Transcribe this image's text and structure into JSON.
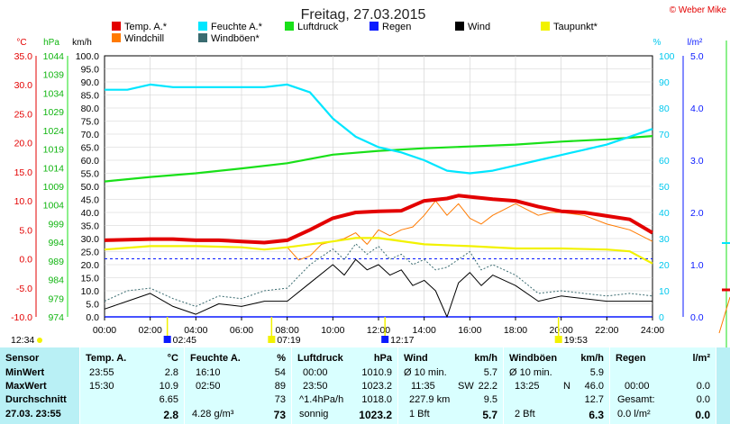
{
  "title": "Freitag, 27.03.2015",
  "credit": "© Weber Mike",
  "legend": [
    {
      "label": "Temp. A.*",
      "color": "#e30000"
    },
    {
      "label": "Feuchte A.*",
      "color": "#00e6ff"
    },
    {
      "label": "Luftdruck",
      "color": "#19e019"
    },
    {
      "label": "Regen",
      "color": "#0a1aff"
    },
    {
      "label": "Wind",
      "color": "#000000"
    },
    {
      "label": "Taupunkt*",
      "color": "#f2f200"
    },
    {
      "label": "Windchill",
      "color": "#ff7a00"
    },
    {
      "label": "Windböen*",
      "color": "#3a6b70"
    }
  ],
  "axis_units": {
    "temp": "°C",
    "press": "hPa",
    "wind": "km/h",
    "hum": "%",
    "rain": "l/m²"
  },
  "axis_colors": {
    "temp": "#e30000",
    "press": "#11b511",
    "wind": "#000000",
    "hum": "#00c8ee",
    "rain": "#0a1aff"
  },
  "axis_ticks": {
    "temp": [
      "35.0",
      "30.0",
      "25.0",
      "20.0",
      "15.0",
      "10.0",
      "5.0",
      "0.0",
      "-5.0",
      "-10.0"
    ],
    "press": [
      "1044",
      "1039",
      "1034",
      "1029",
      "1024",
      "1019",
      "1014",
      "1009",
      "1004",
      "999",
      "994",
      "989",
      "984",
      "979",
      "974"
    ],
    "wind": [
      "100.0",
      "95.0",
      "90.0",
      "85.0",
      "80.0",
      "75.0",
      "70.0",
      "65.0",
      "60.0",
      "55.0",
      "50.0",
      "45.0",
      "40.0",
      "35.0",
      "30.0",
      "25.0",
      "20.0",
      "15.0",
      "10.0",
      "5.0",
      "0.0"
    ],
    "hum": [
      "100",
      "90",
      "80",
      "70",
      "60",
      "50",
      "40",
      "30",
      "20",
      "10",
      "0"
    ],
    "rain": [
      "5.0",
      "4.0",
      "3.0",
      "2.0",
      "1.0",
      "0.0"
    ]
  },
  "x_ticks": [
    "00:00",
    "02:00",
    "04:00",
    "06:00",
    "08:00",
    "10:00",
    "12:00",
    "14:00",
    "16:00",
    "18:00",
    "20:00",
    "22:00",
    "24:00"
  ],
  "sun_events": {
    "start": "12:34",
    "sunrise": "02:45",
    "dawn": "07:19",
    "noon": "12:17",
    "sunset": "19:53"
  },
  "chart_data": {
    "type": "line",
    "x_unit": "hours",
    "xlim": [
      0,
      24
    ],
    "series": [
      {
        "name": "Temp. A.*",
        "axis": "°C",
        "ylim": [
          -10,
          35
        ],
        "color": "#e30000",
        "points": [
          [
            0,
            3.2
          ],
          [
            2,
            3.4
          ],
          [
            3,
            3.4
          ],
          [
            4,
            3.2
          ],
          [
            5,
            3.2
          ],
          [
            6,
            3.0
          ],
          [
            7,
            2.8
          ],
          [
            8,
            3.2
          ],
          [
            9,
            5.0
          ],
          [
            10,
            7.0
          ],
          [
            11,
            8.0
          ],
          [
            12,
            8.2
          ],
          [
            13,
            8.3
          ],
          [
            14,
            10.0
          ],
          [
            15,
            10.4
          ],
          [
            15.5,
            10.9
          ],
          [
            16,
            10.7
          ],
          [
            17,
            10.3
          ],
          [
            18,
            10.0
          ],
          [
            19,
            9.0
          ],
          [
            20,
            8.2
          ],
          [
            21,
            8.0
          ],
          [
            22,
            7.4
          ],
          [
            23,
            6.8
          ],
          [
            24,
            4.5
          ]
        ]
      },
      {
        "name": "Feuchte A.*",
        "axis": "%",
        "ylim": [
          0,
          100
        ],
        "color": "#00e6ff",
        "points": [
          [
            0,
            87
          ],
          [
            1,
            87
          ],
          [
            2,
            89
          ],
          [
            3,
            88
          ],
          [
            4,
            88
          ],
          [
            5,
            88
          ],
          [
            6,
            88
          ],
          [
            7,
            88
          ],
          [
            8,
            89
          ],
          [
            9,
            86
          ],
          [
            10,
            76
          ],
          [
            11,
            69
          ],
          [
            12,
            65
          ],
          [
            13,
            63
          ],
          [
            14,
            60
          ],
          [
            15,
            56
          ],
          [
            16,
            55
          ],
          [
            17,
            56
          ],
          [
            18,
            58
          ],
          [
            19,
            60
          ],
          [
            20,
            62
          ],
          [
            21,
            64
          ],
          [
            22,
            66
          ],
          [
            23,
            69
          ],
          [
            24,
            72
          ]
        ]
      },
      {
        "name": "Luftdruck",
        "axis": "hPa",
        "ylim": [
          974,
          1044
        ],
        "color": "#19e019",
        "points": [
          [
            0,
            1010.3
          ],
          [
            2,
            1011.5
          ],
          [
            4,
            1012.5
          ],
          [
            6,
            1013.8
          ],
          [
            8,
            1015.2
          ],
          [
            10,
            1017.5
          ],
          [
            12,
            1018.5
          ],
          [
            14,
            1019.2
          ],
          [
            16,
            1019.7
          ],
          [
            18,
            1020.2
          ],
          [
            20,
            1021.0
          ],
          [
            22,
            1021.6
          ],
          [
            24,
            1022.5
          ]
        ]
      },
      {
        "name": "Taupunkt*",
        "axis": "°C",
        "ylim": [
          -10,
          35
        ],
        "color": "#f2f200",
        "points": [
          [
            0,
            1.6
          ],
          [
            2,
            2.2
          ],
          [
            4,
            2.2
          ],
          [
            6,
            2.0
          ],
          [
            7,
            1.6
          ],
          [
            8,
            2.0
          ],
          [
            10,
            3.0
          ],
          [
            11,
            3.6
          ],
          [
            12,
            3.6
          ],
          [
            14,
            2.5
          ],
          [
            16,
            2.2
          ],
          [
            18,
            1.8
          ],
          [
            20,
            1.8
          ],
          [
            22,
            1.6
          ],
          [
            23,
            1.3
          ],
          [
            24,
            -0.8
          ]
        ]
      },
      {
        "name": "Windchill",
        "axis": "°C",
        "ylim": [
          -10,
          35
        ],
        "color": "#ff7a00",
        "points": [
          [
            8,
            2.0
          ],
          [
            8.5,
            -0.2
          ],
          [
            9,
            0.5
          ],
          [
            9.5,
            2.5
          ],
          [
            10,
            3.0
          ],
          [
            10.5,
            3.5
          ],
          [
            11,
            4.5
          ],
          [
            11.5,
            2.5
          ],
          [
            12,
            5.0
          ],
          [
            12.5,
            4.0
          ],
          [
            13,
            5.0
          ],
          [
            13.5,
            5.5
          ],
          [
            14,
            7.5
          ],
          [
            14.5,
            10.0
          ],
          [
            15,
            7.5
          ],
          [
            15.5,
            9.5
          ],
          [
            16,
            7.0
          ],
          [
            16.5,
            6.0
          ],
          [
            17,
            7.5
          ],
          [
            17.5,
            8.5
          ],
          [
            18,
            9.5
          ],
          [
            18.5,
            8.5
          ],
          [
            19,
            7.5
          ],
          [
            19.5,
            8.0
          ],
          [
            20,
            8.0
          ],
          [
            21,
            7.5
          ],
          [
            22,
            6.0
          ],
          [
            23,
            5.0
          ],
          [
            24,
            3.0
          ]
        ]
      },
      {
        "name": "Wind",
        "axis": "km/h",
        "ylim": [
          0,
          100
        ],
        "color": "#000000",
        "points": [
          [
            0,
            3
          ],
          [
            1,
            6
          ],
          [
            2,
            9
          ],
          [
            3,
            4
          ],
          [
            4,
            1
          ],
          [
            5,
            5
          ],
          [
            6,
            4
          ],
          [
            7,
            6
          ],
          [
            8,
            6
          ],
          [
            9,
            13
          ],
          [
            10,
            20
          ],
          [
            10.5,
            16
          ],
          [
            11,
            22
          ],
          [
            11.5,
            18
          ],
          [
            12,
            20
          ],
          [
            12.5,
            16
          ],
          [
            13,
            18
          ],
          [
            13.5,
            12
          ],
          [
            14,
            14
          ],
          [
            14.5,
            10
          ],
          [
            15,
            0
          ],
          [
            15.5,
            13
          ],
          [
            16,
            17
          ],
          [
            16.5,
            12
          ],
          [
            17,
            16
          ],
          [
            18,
            12
          ],
          [
            19,
            6
          ],
          [
            20,
            8
          ],
          [
            21,
            7
          ],
          [
            22,
            6
          ],
          [
            23,
            6
          ],
          [
            24,
            6
          ]
        ]
      },
      {
        "name": "Windböen*",
        "axis": "km/h",
        "ylim": [
          0,
          100
        ],
        "color": "#3a6b70",
        "points": [
          [
            0,
            6
          ],
          [
            1,
            10
          ],
          [
            2,
            11
          ],
          [
            3,
            7
          ],
          [
            4,
            4
          ],
          [
            5,
            8
          ],
          [
            6,
            7
          ],
          [
            7,
            10
          ],
          [
            8,
            11
          ],
          [
            9,
            20
          ],
          [
            10,
            26
          ],
          [
            10.5,
            22
          ],
          [
            11,
            28
          ],
          [
            11.5,
            24
          ],
          [
            12,
            27
          ],
          [
            12.5,
            22
          ],
          [
            13,
            24
          ],
          [
            13.5,
            20
          ],
          [
            14,
            22
          ],
          [
            14.5,
            18
          ],
          [
            15,
            19
          ],
          [
            15.5,
            22
          ],
          [
            16,
            25
          ],
          [
            16.5,
            18
          ],
          [
            17,
            20
          ],
          [
            18,
            16
          ],
          [
            19,
            9
          ],
          [
            20,
            10
          ],
          [
            21,
            9
          ],
          [
            22,
            8
          ],
          [
            23,
            9
          ],
          [
            24,
            8
          ]
        ]
      },
      {
        "name": "Regen",
        "axis": "l/m²",
        "ylim": [
          0,
          5
        ],
        "color": "#0a1aff",
        "points": [
          [
            0,
            0
          ],
          [
            24,
            0
          ]
        ]
      }
    ]
  },
  "table": {
    "row_labels": [
      "Sensor",
      "MinWert",
      "MaxWert",
      "Durchschnitt",
      "27.03. 23:55"
    ],
    "temp": {
      "header": "Temp. A.",
      "unit": "°C",
      "min_time": "23:55",
      "min_val": "2.8",
      "max_time": "15:30",
      "max_val": "10.9",
      "avg_val": "6.65",
      "cur_val": "2.8"
    },
    "hum": {
      "header": "Feuchte A.",
      "unit": "%",
      "min_time": "16:10",
      "min_val": "54",
      "max_time": "02:50",
      "max_val": "89",
      "avg_val": "73",
      "cur_extra": "4.28 g/m³",
      "cur_val": "73"
    },
    "press": {
      "header": "Luftdruck",
      "unit": "hPa",
      "min_time": "00:00",
      "min_val": "1010.9",
      "max_time": "23:50",
      "max_val": "1023.2",
      "avg_label": "^1.4hPa/h",
      "avg_val": "1018.0",
      "cur_label": "sonnig",
      "cur_val": "1023.2"
    },
    "wind": {
      "header": "Wind",
      "unit": "km/h",
      "r1_label": "Ø 10 min.",
      "r1_val": "5.7",
      "r2_time": "11:35",
      "r2_dir": "SW",
      "r2_val": "22.2",
      "r3_label": "227.9 km",
      "r3_val": "9.5",
      "cur_label": "1 Bft",
      "cur_val": "5.7"
    },
    "gust": {
      "header": "Windböen",
      "unit": "km/h",
      "r1_label": "Ø 10 min.",
      "r1_val": "5.9",
      "r2_time": "13:25",
      "r2_dir": "N",
      "r2_val": "46.0",
      "r3_val": "12.7",
      "cur_label": "2 Bft",
      "cur_val": "6.3"
    },
    "rain": {
      "header": "Regen",
      "unit": "l/m²",
      "r2_time": "00:00",
      "r2_val": "0.0",
      "r3_label": "Gesamt:",
      "r3_val": "0.0",
      "cur_label": "0.0 l/m²",
      "cur_val": "0.0"
    }
  }
}
